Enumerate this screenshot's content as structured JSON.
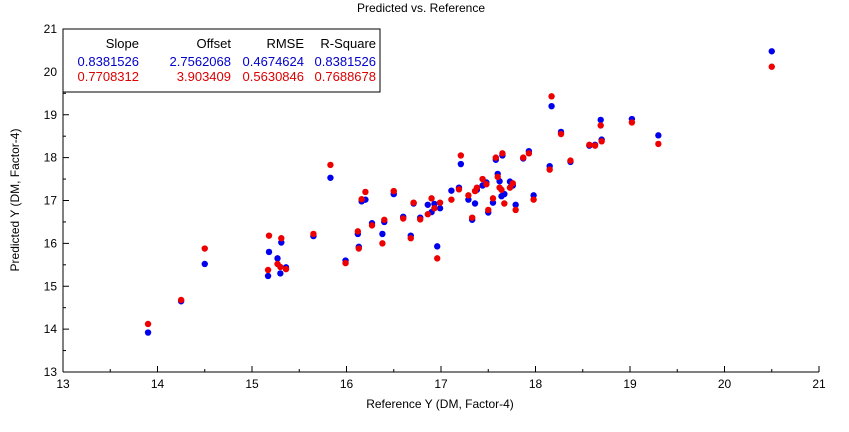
{
  "chart_data": {
    "type": "scatter",
    "title": "Predicted vs. Reference",
    "xlabel": "Reference Y (DM, Factor-4)",
    "ylabel": "Predicted Y (DM, Factor-4)",
    "xlim": [
      13,
      21
    ],
    "ylim": [
      13,
      21
    ],
    "xticks": [
      "13",
      "14",
      "15",
      "16",
      "17",
      "18",
      "19",
      "20",
      "21"
    ],
    "yticks": [
      "13",
      "14",
      "15",
      "16",
      "17",
      "18",
      "19",
      "20",
      "21"
    ],
    "grid": false,
    "stats_table": {
      "headers": [
        "Slope",
        "Offset",
        "RMSE",
        "R-Square"
      ],
      "rows": [
        {
          "values": [
            "0.8381526",
            "2.7562068",
            "0.4674624",
            "0.8381526"
          ],
          "color": "#0000cc"
        },
        {
          "values": [
            "0.7708312",
            "3.903409",
            "0.5630846",
            "0.7688678"
          ],
          "color": "#dd0000"
        }
      ]
    },
    "series": [
      {
        "color": "#0000ee",
        "points": [
          [
            13.9,
            13.92
          ],
          [
            14.25,
            14.65
          ],
          [
            14.5,
            15.52
          ],
          [
            15.17,
            15.24
          ],
          [
            15.18,
            15.8
          ],
          [
            15.27,
            15.65
          ],
          [
            15.3,
            15.3
          ],
          [
            15.31,
            16.02
          ],
          [
            15.36,
            15.44
          ],
          [
            15.65,
            16.17
          ],
          [
            15.83,
            17.53
          ],
          [
            15.99,
            15.6
          ],
          [
            16.12,
            16.22
          ],
          [
            16.13,
            15.92
          ],
          [
            16.16,
            16.98
          ],
          [
            16.2,
            17.02
          ],
          [
            16.27,
            16.47
          ],
          [
            16.38,
            16.22
          ],
          [
            16.4,
            16.5
          ],
          [
            16.5,
            17.15
          ],
          [
            16.6,
            16.62
          ],
          [
            16.68,
            16.18
          ],
          [
            16.71,
            16.93
          ],
          [
            16.78,
            16.6
          ],
          [
            16.86,
            16.9
          ],
          [
            16.9,
            16.73
          ],
          [
            16.93,
            16.92
          ],
          [
            16.96,
            15.93
          ],
          [
            16.99,
            16.82
          ],
          [
            17.11,
            17.23
          ],
          [
            17.19,
            17.3
          ],
          [
            17.21,
            17.85
          ],
          [
            17.29,
            17.02
          ],
          [
            17.33,
            16.55
          ],
          [
            17.36,
            16.93
          ],
          [
            17.38,
            17.25
          ],
          [
            17.44,
            17.35
          ],
          [
            17.48,
            17.42
          ],
          [
            17.5,
            16.72
          ],
          [
            17.55,
            16.95
          ],
          [
            17.58,
            17.95
          ],
          [
            17.6,
            17.62
          ],
          [
            17.62,
            17.45
          ],
          [
            17.64,
            17.1
          ],
          [
            17.65,
            18.05
          ],
          [
            17.67,
            17.15
          ],
          [
            17.73,
            17.44
          ],
          [
            17.76,
            17.35
          ],
          [
            17.79,
            16.9
          ],
          [
            17.87,
            17.98
          ],
          [
            17.93,
            18.15
          ],
          [
            17.98,
            17.12
          ],
          [
            18.15,
            17.8
          ],
          [
            18.17,
            19.2
          ],
          [
            18.27,
            18.6
          ],
          [
            18.37,
            17.9
          ],
          [
            18.57,
            18.28
          ],
          [
            18.63,
            18.3
          ],
          [
            18.69,
            18.88
          ],
          [
            18.7,
            18.42
          ],
          [
            19.02,
            18.9
          ],
          [
            19.3,
            18.52
          ],
          [
            20.5,
            20.48
          ]
        ]
      },
      {
        "color": "#ee0000",
        "points": [
          [
            13.9,
            14.12
          ],
          [
            14.25,
            14.68
          ],
          [
            14.5,
            15.88
          ],
          [
            15.17,
            15.38
          ],
          [
            15.18,
            16.18
          ],
          [
            15.27,
            15.52
          ],
          [
            15.3,
            15.45
          ],
          [
            15.31,
            16.12
          ],
          [
            15.36,
            15.4
          ],
          [
            15.65,
            16.22
          ],
          [
            15.83,
            17.83
          ],
          [
            15.99,
            15.54
          ],
          [
            16.12,
            16.28
          ],
          [
            16.13,
            15.88
          ],
          [
            16.16,
            17.03
          ],
          [
            16.2,
            17.2
          ],
          [
            16.27,
            16.42
          ],
          [
            16.38,
            16.0
          ],
          [
            16.4,
            16.55
          ],
          [
            16.5,
            17.22
          ],
          [
            16.6,
            16.58
          ],
          [
            16.68,
            16.12
          ],
          [
            16.71,
            16.95
          ],
          [
            16.78,
            16.56
          ],
          [
            16.86,
            16.68
          ],
          [
            16.9,
            17.05
          ],
          [
            16.93,
            16.82
          ],
          [
            16.96,
            15.65
          ],
          [
            16.99,
            16.95
          ],
          [
            17.11,
            17.02
          ],
          [
            17.19,
            17.26
          ],
          [
            17.21,
            18.05
          ],
          [
            17.29,
            17.12
          ],
          [
            17.33,
            16.6
          ],
          [
            17.36,
            17.22
          ],
          [
            17.38,
            17.3
          ],
          [
            17.44,
            17.5
          ],
          [
            17.48,
            17.38
          ],
          [
            17.5,
            16.78
          ],
          [
            17.55,
            17.05
          ],
          [
            17.58,
            18.0
          ],
          [
            17.6,
            17.55
          ],
          [
            17.62,
            17.3
          ],
          [
            17.64,
            17.25
          ],
          [
            17.65,
            18.1
          ],
          [
            17.67,
            16.93
          ],
          [
            17.73,
            17.3
          ],
          [
            17.76,
            17.4
          ],
          [
            17.79,
            16.78
          ],
          [
            17.87,
            18.0
          ],
          [
            17.93,
            18.1
          ],
          [
            17.98,
            17.02
          ],
          [
            18.15,
            17.72
          ],
          [
            18.17,
            19.43
          ],
          [
            18.27,
            18.55
          ],
          [
            18.37,
            17.93
          ],
          [
            18.57,
            18.3
          ],
          [
            18.63,
            18.28
          ],
          [
            18.69,
            18.75
          ],
          [
            18.7,
            18.38
          ],
          [
            19.02,
            18.82
          ],
          [
            19.3,
            18.32
          ],
          [
            20.5,
            20.12
          ]
        ]
      }
    ]
  }
}
